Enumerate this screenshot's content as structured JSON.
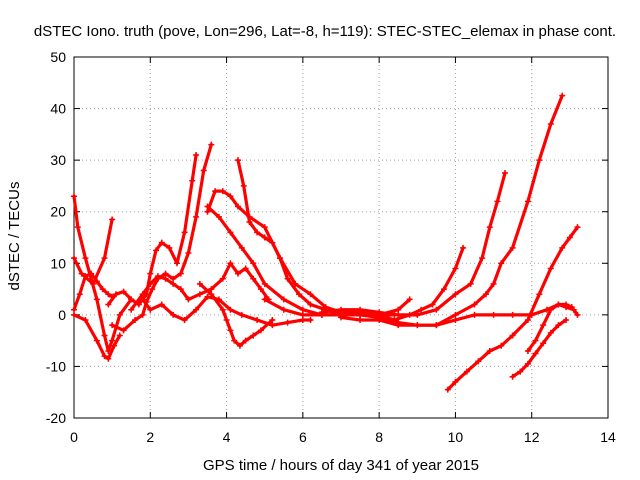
{
  "chart_data": {
    "type": "line",
    "title": "dSTEC Iono. truth (pove, Lon=296, Lat=-8, h=119): STEC-STEC_elemax in phase cont.",
    "xlabel": "GPS time / hours of day 341 of year 2015",
    "ylabel": "dSTEC  / TECUs",
    "xlim": [
      0,
      14
    ],
    "ylim": [
      -20,
      50
    ],
    "xticks": [
      0,
      2,
      4,
      6,
      8,
      10,
      12,
      14
    ],
    "yticks": [
      -20,
      -10,
      0,
      10,
      20,
      30,
      40,
      50
    ],
    "grid": true,
    "legend": "none",
    "series_color": "#ff0000",
    "series": [
      {
        "x": [
          0.0,
          0.15,
          0.3,
          0.45,
          0.6,
          0.75,
          0.9,
          1.0
        ],
        "y": [
          1,
          4,
          7.5,
          8,
          6.5,
          5,
          4,
          3.5
        ]
      },
      {
        "x": [
          0.0,
          0.2,
          0.5,
          0.8,
          1.0
        ],
        "y": [
          11,
          8,
          6,
          11,
          18.5
        ]
      },
      {
        "x": [
          0.0,
          0.1,
          0.3,
          0.6,
          0.8,
          0.9,
          1.0,
          1.2,
          1.5
        ],
        "y": [
          23,
          17,
          11,
          3,
          -4,
          -7,
          -5,
          0,
          3
        ]
      },
      {
        "x": [
          0.0,
          0.3,
          0.6,
          0.8,
          0.9,
          1.05,
          1.2
        ],
        "y": [
          0,
          -1,
          -5,
          -8,
          -8.5,
          -6,
          -4
        ]
      },
      {
        "x": [
          0.9,
          1.1,
          1.3,
          1.5,
          1.7,
          1.9,
          2.0,
          2.15,
          2.3,
          2.5,
          2.7,
          2.9,
          3.1,
          3.2
        ],
        "y": [
          2,
          4,
          4.5,
          3,
          2,
          4,
          8,
          12.5,
          14,
          13,
          10,
          16,
          26,
          31
        ]
      },
      {
        "x": [
          1.0,
          1.3,
          1.6,
          1.8,
          1.9,
          2.05,
          2.2,
          2.4,
          2.6,
          2.8,
          3.0,
          3.2,
          3.4,
          3.6
        ],
        "y": [
          -2,
          -3,
          -1,
          0,
          2.5,
          5,
          7,
          8,
          7,
          8,
          12,
          19,
          28,
          33
        ]
      },
      {
        "x": [
          1.5,
          1.8,
          2.0,
          2.2,
          2.4,
          2.6,
          2.8,
          3.0,
          3.3,
          3.6,
          3.9,
          4.1,
          4.3,
          4.5,
          4.7,
          4.9,
          5.1
        ],
        "y": [
          1,
          4,
          6,
          7.5,
          7,
          6,
          5,
          3,
          4,
          5,
          7,
          10,
          8,
          9,
          7,
          5,
          3
        ]
      },
      {
        "x": [
          1.8,
          2.0,
          2.3,
          2.6,
          2.9,
          3.2,
          3.5,
          3.8,
          4.1,
          4.4,
          4.8,
          5.2,
          5.6,
          6.0,
          6.2
        ],
        "y": [
          3,
          1,
          2,
          0,
          -1,
          1,
          3.5,
          3,
          1,
          0,
          -1,
          -2,
          -1.5,
          -1,
          -1
        ]
      },
      {
        "x": [
          3.3,
          3.6,
          3.9,
          4.0,
          4.1,
          4.2,
          4.35,
          4.5,
          4.7,
          4.9,
          5.2
        ],
        "y": [
          6,
          4,
          1,
          -1,
          -3,
          -5,
          -6,
          -5,
          -4,
          -3,
          -1
        ]
      },
      {
        "x": [
          3.5,
          3.7,
          3.9,
          4.1,
          4.3,
          4.6,
          5.0,
          5.4,
          5.8,
          6.2,
          6.6,
          7.0,
          7.5,
          8.0,
          8.5,
          8.8
        ],
        "y": [
          20,
          24,
          24,
          23,
          21,
          19,
          17,
          11,
          6,
          4,
          1.5,
          0.5,
          0.5,
          0,
          1,
          3
        ]
      },
      {
        "x": [
          3.5,
          3.8,
          4.1,
          4.4,
          4.7,
          5.0,
          5.5,
          6.0,
          6.5,
          7.0,
          7.5,
          8.0,
          8.4
        ],
        "y": [
          21,
          19,
          16,
          13,
          10,
          6,
          3,
          1,
          0,
          0,
          0,
          0,
          0
        ]
      },
      {
        "x": [
          4.3,
          4.45,
          4.6,
          4.8,
          5.0,
          5.2,
          5.4,
          5.6,
          5.9,
          6.2,
          6.6,
          7.0,
          7.5,
          8.0,
          8.5,
          9.0,
          9.5,
          10.0,
          10.5,
          10.8,
          11.0,
          11.2,
          11.5,
          11.9,
          12.2,
          12.5,
          12.8
        ],
        "y": [
          30,
          25,
          18,
          16,
          15,
          14,
          11,
          7,
          4,
          2,
          1,
          0,
          0,
          -0.5,
          -1.5,
          -2,
          -2,
          0,
          2,
          4,
          6,
          10,
          13,
          22,
          30,
          37,
          42.5
        ]
      },
      {
        "x": [
          5.0,
          5.5,
          6.0,
          6.5,
          7.0,
          7.5,
          8.0,
          8.4,
          8.8,
          9.1,
          9.4,
          9.7,
          10.0,
          10.2
        ],
        "y": [
          3,
          1,
          0,
          0,
          0,
          0.5,
          0,
          -1,
          0,
          1,
          2,
          5,
          9,
          13
        ]
      },
      {
        "x": [
          6.5,
          7.0,
          7.5,
          8.0,
          8.5,
          9.0,
          9.5,
          10.0,
          10.4,
          10.7,
          10.9,
          11.1,
          11.3
        ],
        "y": [
          0.5,
          1,
          1,
          0.5,
          0,
          0,
          1,
          4,
          6,
          11,
          17,
          22,
          27.5
        ]
      },
      {
        "x": [
          7.0,
          7.5,
          8.0,
          8.5,
          9.0,
          9.5,
          10.0,
          10.5,
          11.0,
          11.5,
          12.0,
          12.4,
          12.7,
          12.9,
          13.1,
          13.2
        ],
        "y": [
          -0.5,
          -1,
          -1,
          -2,
          -2,
          -2,
          -1,
          0,
          0,
          0,
          0,
          1,
          2,
          1.5,
          1,
          0
        ]
      },
      {
        "x": [
          9.8,
          10.0,
          10.3,
          10.6,
          10.9,
          11.2,
          11.5,
          11.9,
          12.2,
          12.5,
          12.8,
          13.0,
          13.2
        ],
        "y": [
          -14.5,
          -13,
          -11,
          -9,
          -7,
          -6,
          -4,
          -1,
          4,
          9,
          13,
          15,
          17
        ]
      },
      {
        "x": [
          11.5,
          11.7,
          11.9,
          12.1,
          12.3,
          12.5,
          12.7,
          12.9
        ],
        "y": [
          -12,
          -11,
          -9.5,
          -7.5,
          -5.5,
          -3.5,
          -2,
          -1
        ]
      },
      {
        "x": [
          11.9,
          12.1,
          12.3,
          12.5,
          12.7,
          12.9,
          13.05
        ],
        "y": [
          -7,
          -5,
          -2,
          1,
          2,
          2,
          1.5
        ]
      }
    ]
  }
}
